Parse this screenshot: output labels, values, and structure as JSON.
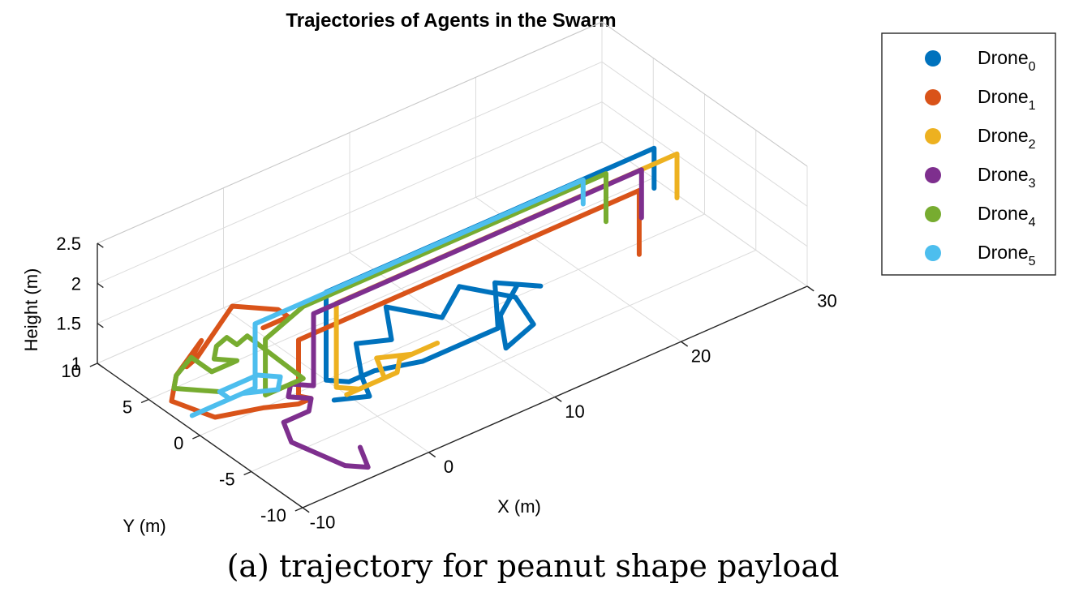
{
  "chart_data": {
    "type": "line",
    "projection": "3d",
    "title": "Trajectories of Agents in the Swarm",
    "xlabel": "X (m)",
    "ylabel": "Y (m)",
    "zlabel": "Height (m)",
    "xlim": [
      -10,
      30
    ],
    "ylim": [
      -10,
      10
    ],
    "zlim": [
      1,
      2.5
    ],
    "xticks": [
      "-10",
      "0",
      "10",
      "20",
      "30"
    ],
    "yticks": [
      "-10",
      "-5",
      "0",
      "5",
      "10"
    ],
    "zticks": [
      "1",
      "1.5",
      "2",
      "2.5"
    ],
    "grid": true,
    "legend_position": "outside-top-right",
    "legend_subscript_indices": [
      "0",
      "1",
      "2",
      "3",
      "4",
      "5"
    ],
    "series": [
      {
        "name": "Drone",
        "subscript": "0",
        "color": "#0072BD",
        "points": [
          [
            -1,
            -2,
            1.0
          ],
          [
            1,
            -3,
            1.0
          ],
          [
            2,
            -1,
            1.0
          ],
          [
            4,
            2,
            1.0
          ],
          [
            6,
            1,
            1.0
          ],
          [
            8,
            4,
            1.0
          ],
          [
            10,
            1,
            1.0
          ],
          [
            13,
            3,
            1.0
          ],
          [
            15,
            0,
            1.0
          ],
          [
            14,
            -3,
            1.0
          ],
          [
            11,
            -4,
            1.0
          ],
          [
            13,
            -1,
            1.0
          ],
          [
            16,
            1,
            1.0
          ],
          [
            17,
            0,
            1.0
          ],
          [
            15,
            2,
            1.0
          ],
          [
            12,
            -2,
            1.0
          ],
          [
            9,
            -2,
            1.0
          ],
          [
            6,
            -2,
            1.0
          ],
          [
            3,
            -1,
            1.0
          ],
          [
            1,
            -1,
            1.0
          ],
          [
            0,
            0,
            1.0
          ],
          [
            0,
            0,
            1.5
          ],
          [
            0,
            0,
            2.0
          ],
          [
            0,
            0,
            2.1
          ],
          [
            26,
            0,
            2.1
          ],
          [
            26,
            0,
            1.6
          ]
        ]
      },
      {
        "name": "Drone",
        "subscript": "1",
        "color": "#D95319",
        "points": [
          [
            -5,
            0,
            2.0
          ],
          [
            -3,
            0,
            2.0
          ],
          [
            -3,
            1,
            2.0
          ],
          [
            -5,
            3,
            2.0
          ],
          [
            -7,
            4,
            1.4
          ],
          [
            -7,
            5,
            1.2
          ],
          [
            -5,
            6,
            1.3
          ],
          [
            -7,
            6,
            1.0
          ],
          [
            -9,
            4,
            1.0
          ],
          [
            -8,
            1,
            1.0
          ],
          [
            -5,
            0,
            1.0
          ],
          [
            -3,
            -1,
            1.0
          ],
          [
            -2,
            -1,
            1.0
          ],
          [
            -3,
            -1,
            1.1
          ],
          [
            -3,
            -1,
            1.5
          ],
          [
            -3,
            -1,
            1.8
          ],
          [
            24,
            -1,
            1.8
          ],
          [
            24,
            -1,
            1.0
          ]
        ]
      },
      {
        "name": "Drone",
        "subscript": "2",
        "color": "#EDB120",
        "points": [
          [
            0,
            -2,
            1.0
          ],
          [
            3,
            -2,
            1.0
          ],
          [
            4,
            0,
            1.0
          ],
          [
            6,
            -1,
            1.0
          ],
          [
            8,
            -1,
            1.0
          ],
          [
            7,
            -1,
            1.0
          ],
          [
            5,
            -1,
            1.0
          ],
          [
            4,
            -2,
            1.0
          ],
          [
            1,
            -2,
            1.0
          ],
          [
            0,
            -1,
            1.0
          ],
          [
            0,
            -1,
            1.5
          ],
          [
            0,
            -1,
            2.05
          ],
          [
            27,
            -1,
            2.05
          ],
          [
            27,
            -1,
            1.5
          ]
        ]
      },
      {
        "name": "Drone",
        "subscript": "3",
        "color": "#7E2F8E",
        "points": [
          [
            -3,
            -7,
            1.0
          ],
          [
            -4,
            -9,
            1.0
          ],
          [
            -5,
            -8,
            1.0
          ],
          [
            -6,
            -4,
            1.0
          ],
          [
            -5,
            -2,
            1.0
          ],
          [
            -3,
            -2,
            1.0
          ],
          [
            -2,
            -1,
            1.0
          ],
          [
            -3,
            0,
            1.0
          ],
          [
            -2,
            1,
            1.0
          ],
          [
            -1,
            0,
            1.0
          ],
          [
            -1,
            0,
            1.5
          ],
          [
            -1,
            0,
            1.9
          ],
          [
            25,
            0,
            1.9
          ],
          [
            25,
            0,
            1.3
          ]
        ]
      },
      {
        "name": "Drone",
        "subscript": "4",
        "color": "#77AC30",
        "points": [
          [
            -6,
            3,
            1.0
          ],
          [
            -8,
            5,
            1.0
          ],
          [
            -7,
            6,
            1.0
          ],
          [
            -5,
            7,
            1.0
          ],
          [
            -5,
            5,
            1.0
          ],
          [
            -3,
            5,
            1.0
          ],
          [
            -4,
            6,
            1.0
          ],
          [
            -3,
            7,
            1.0
          ],
          [
            -3,
            6,
            1.2
          ],
          [
            -3,
            5,
            1.2
          ],
          [
            -3,
            4,
            1.4
          ],
          [
            -1,
            1,
            1.0
          ],
          [
            -4,
            1,
            1.0
          ],
          [
            -4,
            1,
            1.5
          ],
          [
            -4,
            1,
            1.7
          ],
          [
            -1,
            1,
            1.9
          ],
          [
            23,
            1,
            1.9
          ],
          [
            23,
            1,
            1.3
          ]
        ]
      },
      {
        "name": "Drone",
        "subscript": "5",
        "color": "#4DBEEE",
        "points": [
          [
            -9,
            2,
            1.0
          ],
          [
            -7,
            2,
            1.0
          ],
          [
            -5,
            2,
            1.0
          ],
          [
            -3,
            1,
            1.0
          ],
          [
            -2,
            2,
            1.0
          ],
          [
            -3,
            3,
            1.0
          ],
          [
            -6,
            3,
            1.0
          ],
          [
            -6,
            2,
            1.0
          ],
          [
            -4,
            2,
            1.0
          ],
          [
            -4,
            2,
            1.5
          ],
          [
            -4,
            2,
            1.8
          ],
          [
            -3,
            2,
            1.8
          ],
          [
            22,
            2,
            1.8
          ],
          [
            22,
            2,
            1.5
          ]
        ]
      }
    ]
  },
  "caption": "(a) trajectory for peanut shape payload"
}
